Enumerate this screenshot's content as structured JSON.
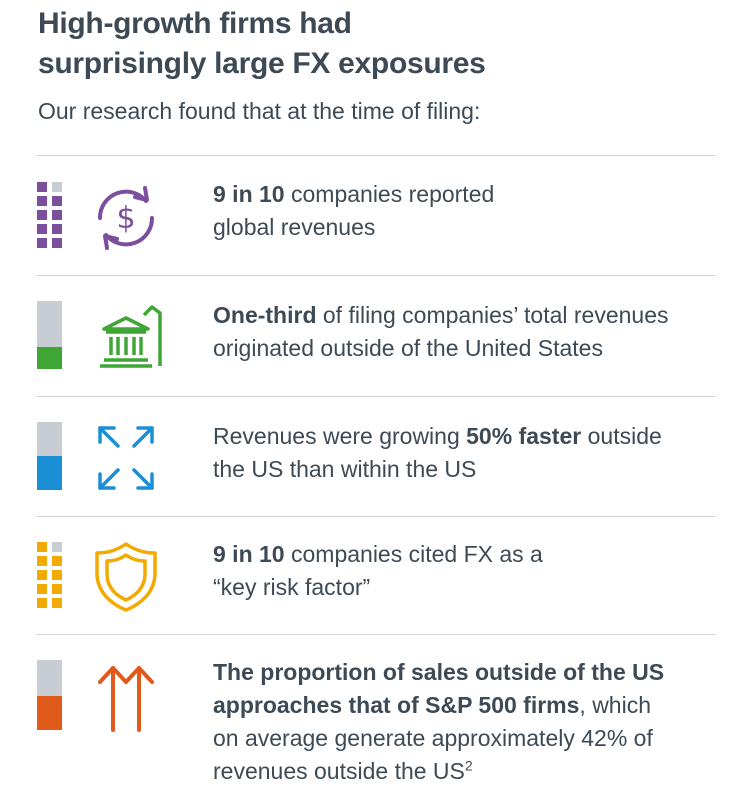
{
  "header": {
    "title_line1": "High-growth firms had",
    "title_line2": "surprisingly large FX exposures",
    "subtitle": "Our research found that at the time of filing:"
  },
  "items": [
    {
      "icon": "dollar-cycle-icon",
      "color": "#7b4f9d",
      "gauge": "9 of 10 squares",
      "parts": [
        {
          "t": "9 in 10",
          "b": true
        },
        {
          "t": " companies reported"
        }
      ],
      "line2": [
        {
          "t": "global revenues"
        }
      ]
    },
    {
      "icon": "bank-building-icon",
      "color": "#3fa535",
      "gauge_fill": 0.33,
      "parts": [
        {
          "t": "One-third",
          "b": true
        },
        {
          "t": " of filing companies’ total revenues"
        }
      ],
      "line2": [
        {
          "t": "originated outside of the United States"
        }
      ]
    },
    {
      "icon": "expand-arrows-icon",
      "color": "#1a8fd6",
      "gauge_fill": 0.5,
      "parts": [
        {
          "t": "Revenues were growing "
        },
        {
          "t": "50% faster",
          "b": true
        },
        {
          "t": " outside"
        }
      ],
      "line2": [
        {
          "t": "the US than within the US"
        }
      ]
    },
    {
      "icon": "shield-icon",
      "color": "#f2a900",
      "gauge": "9 of 10 squares",
      "parts": [
        {
          "t": "9 in 10",
          "b": true
        },
        {
          "t": " companies cited FX as a"
        }
      ],
      "line2": [
        {
          "t": "“key risk factor”"
        }
      ]
    },
    {
      "icon": "up-arrows-icon",
      "color": "#e05a1c",
      "gauge_fill": 0.5,
      "parts": [
        {
          "t": "The proportion of sales outside of the US",
          "b": true
        }
      ],
      "line2": [
        {
          "t": "approaches that of S&P 500 firms",
          "b": true
        },
        {
          "t": ", which"
        }
      ],
      "line3": [
        {
          "t": "on average generate approximately 42% of"
        }
      ],
      "line4": [
        {
          "t": "revenues outside the US"
        },
        {
          "t": "2",
          "sup": true
        }
      ]
    }
  ]
}
